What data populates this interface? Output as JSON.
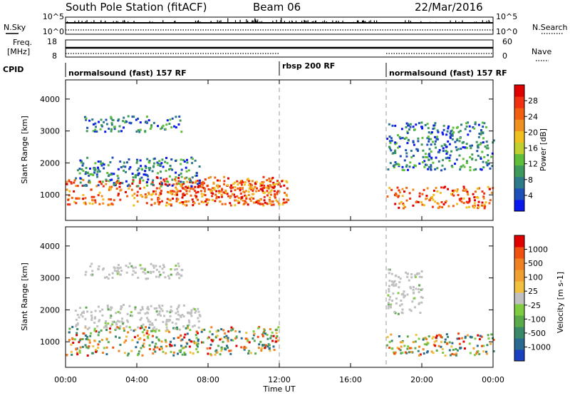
{
  "header": {
    "station": "South Pole Station (fitACF)",
    "beam": "Beam 06",
    "date": "22/Mar/2016"
  },
  "strips": {
    "nsky": {
      "label": "N.Sky",
      "ticks": [
        "10^5",
        "10^0"
      ]
    },
    "nsearch": {
      "label": "N.Search",
      "ticks": [
        "10^5",
        "10^0"
      ]
    },
    "freq": {
      "label_line1": "Freq.",
      "label_line2": "[MHz]",
      "ticks": [
        "18",
        "8"
      ]
    },
    "nave": {
      "label": "Nave",
      "ticks": [
        "60",
        "0"
      ]
    },
    "cpid": {
      "label": "CPID",
      "segments": [
        "normalsound (fast) 157 RF",
        "rbsp 200 RF",
        "normalsound (fast) 157 RF"
      ]
    }
  },
  "chart_data": [
    {
      "type": "heatmap",
      "panel": "power",
      "ylabel": "Slant Range [km]",
      "xlabel": "Time UT",
      "xlim": [
        "00:00",
        "24:00"
      ],
      "ylim": [
        200,
        4600
      ],
      "x_ticks": [
        "00:00",
        "04:00",
        "08:00",
        "12:00",
        "16:00",
        "20:00",
        "00:00"
      ],
      "y_ticks": [
        "1000",
        "2000",
        "3000",
        "4000"
      ],
      "colorbar": {
        "label": "Power [dB]",
        "ticks": [
          "4",
          "8",
          "12",
          "16",
          "20",
          "24",
          "28"
        ],
        "colors": [
          "#0a18f0",
          "#1f4fb8",
          "#2f7a8a",
          "#3d9a5a",
          "#5fbf3a",
          "#c0d030",
          "#f0c020",
          "#f09020",
          "#f06010",
          "#f03010",
          "#e00000"
        ]
      },
      "mode_boundaries": [
        "12:00",
        "18:00"
      ],
      "regions": [
        {
          "t": [
            0.0,
            12.0
          ],
          "range_km": [
            700,
            1500
          ],
          "level": "high"
        },
        {
          "t": [
            5.0,
            12.5
          ],
          "range_km": [
            700,
            1600
          ],
          "level": "high"
        },
        {
          "t": [
            18.0,
            24.0
          ],
          "range_km": [
            600,
            1300
          ],
          "level": "high"
        },
        {
          "t": [
            0.5,
            7.5
          ],
          "range_km": [
            1300,
            2200
          ],
          "level": "low"
        },
        {
          "t": [
            1.0,
            6.5
          ],
          "range_km": [
            3000,
            3500
          ],
          "level": "low"
        },
        {
          "t": [
            18.0,
            24.0
          ],
          "range_km": [
            1800,
            3300
          ],
          "level": "low"
        }
      ]
    },
    {
      "type": "heatmap",
      "panel": "velocity",
      "ylabel": "Slant Range [km]",
      "xlabel": "Time UT",
      "xlim": [
        "00:00",
        "24:00"
      ],
      "ylim": [
        200,
        4600
      ],
      "x_ticks": [
        "00:00",
        "04:00",
        "08:00",
        "12:00",
        "16:00",
        "20:00",
        "00:00"
      ],
      "y_ticks": [
        "1000",
        "2000",
        "3000",
        "4000"
      ],
      "colorbar": {
        "label": "Velocity [m s-1]",
        "ticks": [
          "1000",
          "500",
          "100",
          "25",
          "-25",
          "-100",
          "-500",
          "-1000"
        ],
        "colors": [
          "#1a40c0",
          "#2a6a90",
          "#3a8a6a",
          "#5aaa4a",
          "#80cc40",
          "#c0c0c0",
          "#f0c040",
          "#f0a030",
          "#f08020",
          "#f05010",
          "#e00000"
        ]
      },
      "mode_boundaries": [
        "12:00",
        "18:00"
      ],
      "regions": [
        {
          "t": [
            0.0,
            12.0
          ],
          "range_km": [
            600,
            1500
          ],
          "level": "mixed"
        },
        {
          "t": [
            0.5,
            7.5
          ],
          "range_km": [
            1400,
            2200
          ],
          "level": "ground-scatter"
        },
        {
          "t": [
            1.0,
            6.5
          ],
          "range_km": [
            3000,
            3500
          ],
          "level": "ground-scatter"
        },
        {
          "t": [
            18.0,
            24.0
          ],
          "range_km": [
            600,
            1300
          ],
          "level": "mixed"
        },
        {
          "t": [
            18.0,
            20.0
          ],
          "range_km": [
            1900,
            3300
          ],
          "level": "ground-scatter"
        }
      ]
    }
  ]
}
